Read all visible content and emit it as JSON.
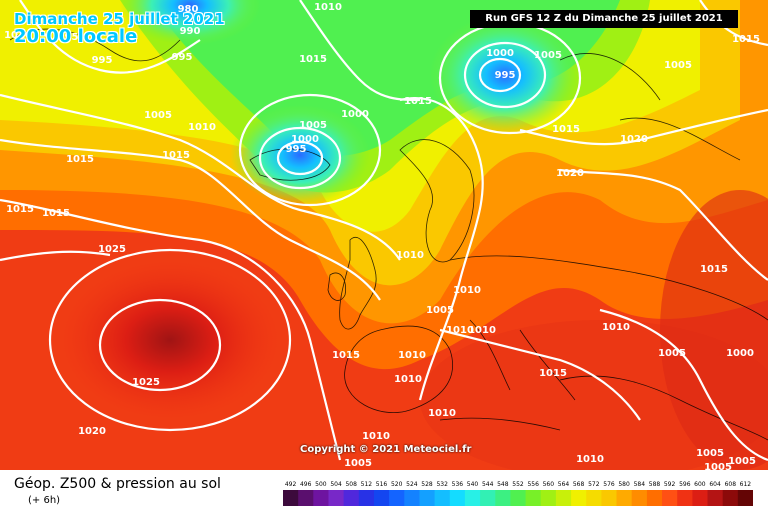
{
  "title": {
    "date": "Dimanche 25 juillet 2021",
    "time": "20:00 locale"
  },
  "run_label": "Run GFS 12 Z du Dimanche 25 juillet 2021",
  "copyright": "Copyright © 2021 Meteociel.fr",
  "legend": {
    "title": "Géop. Z500 & pression au sol",
    "subtitle": "(+ 6h)",
    "ticks": [
      "492",
      "496",
      "500",
      "504",
      "508",
      "512",
      "516",
      "520",
      "524",
      "528",
      "532",
      "536",
      "540",
      "544",
      "548",
      "552",
      "556",
      "560",
      "564",
      "568",
      "572",
      "576",
      "580",
      "584",
      "588",
      "592",
      "596",
      "600",
      "604",
      "608",
      "612"
    ],
    "colors": [
      "#3c0a3c",
      "#5a0f6e",
      "#6e14a0",
      "#7828c8",
      "#5028dc",
      "#2832e6",
      "#1446f0",
      "#1464ff",
      "#1482ff",
      "#14a0ff",
      "#14beff",
      "#14dcff",
      "#28f0e6",
      "#32f0b4",
      "#3cf082",
      "#50f050",
      "#78f028",
      "#a0f014",
      "#c8f00a",
      "#f0f000",
      "#f5dc00",
      "#fac800",
      "#ffaa00",
      "#ff8c00",
      "#ff6e00",
      "#ff5014",
      "#f03214",
      "#dc1e14",
      "#b41414",
      "#8c0a0a",
      "#640505"
    ]
  },
  "map": {
    "lows": [
      {
        "label": "995"
      },
      {
        "label": "995"
      }
    ],
    "isobar_labels": [
      "980",
      "990",
      "995",
      "995",
      "995",
      "1010",
      "1010",
      "1015",
      "1015",
      "1015",
      "1015",
      "1015",
      "1015",
      "1005",
      "1010",
      "1005",
      "1000",
      "1000",
      "995",
      "1000",
      "1005",
      "1015",
      "1005",
      "1015",
      "1020",
      "1020",
      "1015",
      "1010",
      "1010",
      "1005",
      "1010",
      "1010",
      "1010",
      "1010",
      "1010",
      "1015",
      "1025",
      "1020",
      "1015",
      "1005",
      "1000",
      "1010",
      "1005",
      "1005",
      "1005",
      "1010",
      "1010",
      "1005"
    ]
  }
}
